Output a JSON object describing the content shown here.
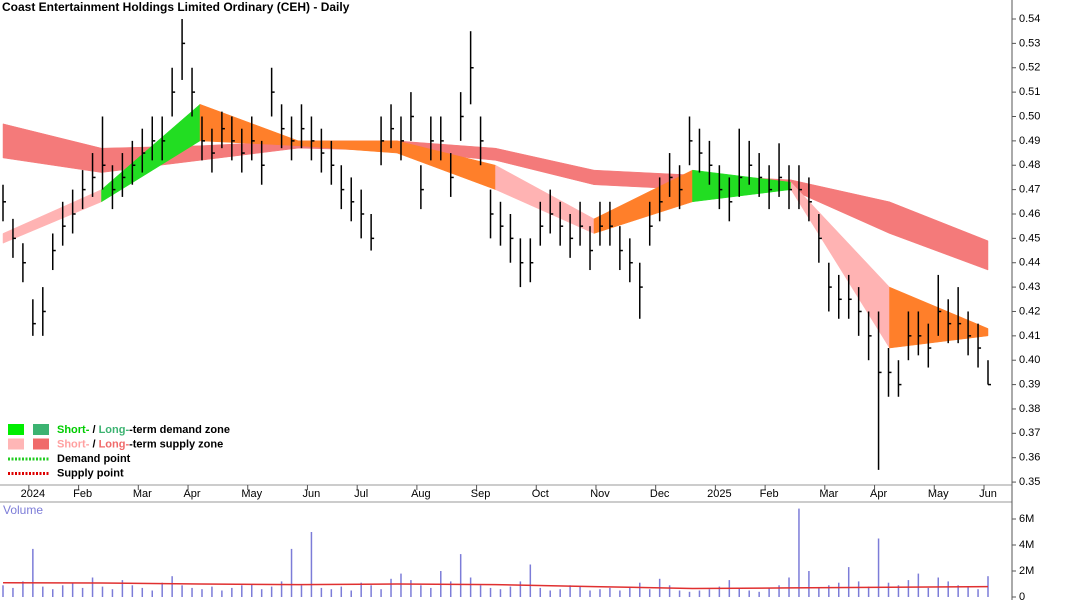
{
  "chart_data": [
    {
      "type": "ohlc",
      "title": "Coast Entertainment Holdings Limited Ordinary (CEH) - Daily",
      "categories": [
        null,
        null,
        null,
        "2024",
        null,
        null,
        null,
        null,
        "Feb",
        null,
        null,
        null,
        null,
        null,
        "Mar",
        null,
        null,
        null,
        null,
        "Apr",
        null,
        null,
        null,
        null,
        null,
        "May",
        null,
        null,
        null,
        null,
        null,
        "Jun",
        null,
        null,
        null,
        null,
        "Jul",
        null,
        null,
        null,
        null,
        null,
        "Aug",
        null,
        null,
        null,
        null,
        null,
        "Sep",
        null,
        null,
        null,
        null,
        null,
        "Oct",
        null,
        null,
        null,
        null,
        null,
        "Nov",
        null,
        null,
        null,
        null,
        null,
        "Dec",
        null,
        null,
        null,
        null,
        null,
        "2025",
        null,
        null,
        null,
        null,
        "Feb",
        null,
        null,
        null,
        null,
        null,
        "Mar",
        null,
        null,
        null,
        null,
        "Apr",
        null,
        null,
        null,
        null,
        null,
        "May",
        null,
        null,
        null,
        null,
        "Jun"
      ],
      "high": [
        0.472,
        0.458,
        0.448,
        0.425,
        0.43,
        0.452,
        0.465,
        0.47,
        0.478,
        0.485,
        0.5,
        0.48,
        0.485,
        0.49,
        0.495,
        0.5,
        0.5,
        0.52,
        0.54,
        0.52,
        0.5,
        0.495,
        0.502,
        0.5,
        0.495,
        0.5,
        0.49,
        0.52,
        0.505,
        0.5,
        0.505,
        0.5,
        0.495,
        0.49,
        0.48,
        0.475,
        0.47,
        0.46,
        0.5,
        0.505,
        0.5,
        0.51,
        0.48,
        0.5,
        0.5,
        0.485,
        0.51,
        0.535,
        0.5,
        0.47,
        0.465,
        0.46,
        0.45,
        0.45,
        0.465,
        0.47,
        0.465,
        0.46,
        0.465,
        0.455,
        0.465,
        0.465,
        0.455,
        0.45,
        0.44,
        0.465,
        0.475,
        0.485,
        0.48,
        0.5,
        0.495,
        0.49,
        0.48,
        0.475,
        0.495,
        0.49,
        0.485,
        0.48,
        0.489,
        0.48,
        0.48,
        0.475,
        0.46,
        0.44,
        0.435,
        0.435,
        0.43,
        0.42,
        0.42,
        0.405,
        0.4,
        0.42,
        0.42,
        0.415,
        0.435,
        0.425,
        0.43,
        0.42,
        0.415,
        0.4
      ],
      "low": [
        0.457,
        0.442,
        0.432,
        0.41,
        0.41,
        0.437,
        0.447,
        0.452,
        0.462,
        0.467,
        0.47,
        0.462,
        0.467,
        0.472,
        0.477,
        0.482,
        0.482,
        0.5,
        0.515,
        0.5,
        0.482,
        0.477,
        0.487,
        0.482,
        0.477,
        0.482,
        0.472,
        0.5,
        0.487,
        0.482,
        0.487,
        0.482,
        0.477,
        0.472,
        0.462,
        0.457,
        0.45,
        0.445,
        0.48,
        0.487,
        0.482,
        0.49,
        0.462,
        0.482,
        0.482,
        0.467,
        0.49,
        0.505,
        0.48,
        0.45,
        0.447,
        0.44,
        0.43,
        0.432,
        0.447,
        0.452,
        0.447,
        0.442,
        0.447,
        0.437,
        0.447,
        0.447,
        0.437,
        0.432,
        0.417,
        0.447,
        0.457,
        0.467,
        0.462,
        0.48,
        0.477,
        0.472,
        0.462,
        0.457,
        0.467,
        0.472,
        0.467,
        0.462,
        0.467,
        0.462,
        0.462,
        0.457,
        0.44,
        0.42,
        0.417,
        0.417,
        0.41,
        0.4,
        0.355,
        0.385,
        0.385,
        0.4,
        0.402,
        0.397,
        0.41,
        0.407,
        0.407,
        0.402,
        0.397,
        0.39
      ],
      "close": [
        0.465,
        0.45,
        0.44,
        0.415,
        0.42,
        0.445,
        0.455,
        0.46,
        0.47,
        0.475,
        0.48,
        0.47,
        0.475,
        0.48,
        0.485,
        0.49,
        0.49,
        0.51,
        0.53,
        0.51,
        0.49,
        0.485,
        0.495,
        0.49,
        0.485,
        0.49,
        0.48,
        0.51,
        0.495,
        0.49,
        0.495,
        0.49,
        0.485,
        0.48,
        0.47,
        0.465,
        0.46,
        0.45,
        0.49,
        0.495,
        0.49,
        0.5,
        0.47,
        0.49,
        0.49,
        0.475,
        0.5,
        0.52,
        0.49,
        0.46,
        0.455,
        0.45,
        0.44,
        0.44,
        0.455,
        0.46,
        0.455,
        0.45,
        0.455,
        0.445,
        0.455,
        0.455,
        0.445,
        0.44,
        0.43,
        0.455,
        0.465,
        0.475,
        0.47,
        0.49,
        0.485,
        0.48,
        0.47,
        0.465,
        0.475,
        0.48,
        0.475,
        0.47,
        0.475,
        0.47,
        0.47,
        0.465,
        0.45,
        0.43,
        0.425,
        0.425,
        0.42,
        0.41,
        0.395,
        0.395,
        0.39,
        0.41,
        0.41,
        0.405,
        0.42,
        0.415,
        0.415,
        0.41,
        0.405,
        0.39
      ],
      "bar_color": "#000000",
      "long_band": {
        "upper": [
          0.497,
          0.487,
          0.488,
          0.49,
          0.49,
          0.487,
          0.478,
          0.476,
          0.474,
          0.465,
          0.449
        ],
        "lower": [
          0.483,
          0.477,
          0.482,
          0.487,
          0.486,
          0.482,
          0.472,
          0.47,
          0.47,
          0.452,
          0.437
        ],
        "color": "#f47a7a"
      },
      "short_band": {
        "upper": [
          0.452,
          0.47,
          0.505,
          0.49,
          0.49,
          0.48,
          0.458,
          0.478,
          0.473,
          0.43,
          0.413
        ],
        "lower": [
          0.448,
          0.465,
          0.49,
          0.488,
          0.485,
          0.47,
          0.452,
          0.465,
          0.47,
          0.405,
          0.41
        ],
        "segment_colors": [
          "#ffb3b3",
          "#22dd22",
          "#ff7f2a",
          "#ff7f2a",
          "#ff7f2a",
          "#ffb3b3",
          "#ff7f2a",
          "#22dd22",
          "#ffb3b3",
          "#ff7f2a"
        ]
      },
      "ylim": [
        0.3488,
        0.5478
      ],
      "yticks": [
        0.35,
        0.36,
        0.37,
        0.38,
        0.39,
        {
          "value": 0.4,
          "label": "0.40"
        },
        0.41,
        0.42,
        0.43,
        0.44,
        0.45,
        0.46,
        0.47,
        0.48,
        0.49,
        {
          "value": 0.5,
          "label": "0.50"
        },
        0.51,
        0.52,
        0.53,
        0.54
      ],
      "legend": [
        {
          "swatches": [
            "#00ee00",
            "#3cb371"
          ],
          "parts": [
            {
              "text": "Short-",
              "color": "#00cc00"
            },
            {
              "text": " / ",
              "color": "#000000"
            },
            {
              "text": "Long-",
              "color": "#3cb371"
            },
            {
              "text": "-term demand zone",
              "color": "#000000"
            }
          ]
        },
        {
          "swatches": [
            "#ffb6b6",
            "#f06a6a"
          ],
          "parts": [
            {
              "text": "Short-",
              "color": "#ffa0a0"
            },
            {
              "text": " / ",
              "color": "#000000"
            },
            {
              "text": "Long-",
              "color": "#f06a6a"
            },
            {
              "text": "-term supply zone",
              "color": "#000000"
            }
          ]
        },
        {
          "line": "#22cc22",
          "parts": [
            {
              "text": "Demand point",
              "color": "#000000"
            }
          ]
        },
        {
          "line": "#dd0000",
          "parts": [
            {
              "text": "Supply point",
              "color": "#000000"
            }
          ]
        }
      ]
    },
    {
      "type": "bar",
      "title": "Volume",
      "values": [
        900000,
        700000,
        1200000,
        3700000,
        800000,
        600000,
        900000,
        1100000,
        700000,
        1500000,
        800000,
        600000,
        1300000,
        900000,
        700000,
        500000,
        1100000,
        1600000,
        900000,
        700000,
        600000,
        800000,
        500000,
        700000,
        900000,
        1000000,
        600000,
        800000,
        1200000,
        3700000,
        900000,
        5000000,
        700000,
        600000,
        800000,
        500000,
        1100000,
        900000,
        600000,
        1400000,
        1800000,
        1300000,
        900000,
        700000,
        2000000,
        1200000,
        3300000,
        1500000,
        900000,
        700000,
        600000,
        800000,
        1200000,
        2500000,
        700000,
        500000,
        600000,
        900000,
        800000,
        500000,
        600000,
        700000,
        500000,
        800000,
        1100000,
        600000,
        1400000,
        900000,
        500000,
        400000,
        500000,
        600000,
        800000,
        1300000,
        700000,
        500000,
        400000,
        700000,
        900000,
        1500000,
        6800000,
        2000000,
        700000,
        900000,
        1100000,
        2300000,
        1200000,
        800000,
        4500000,
        1100000,
        900000,
        1300000,
        1800000,
        700000,
        1500000,
        1200000,
        900000,
        800000,
        600000,
        1600000
      ],
      "color": "#7c7cd8",
      "average_line": {
        "values": [
          1100000,
          1080000,
          1000000,
          950000,
          1000000,
          950000,
          800000,
          650000,
          700000,
          750000,
          800000
        ],
        "color": "#e03030"
      },
      "ylim": [
        0,
        7230000
      ],
      "yticks": [
        0,
        {
          "value": 2000000,
          "label": "2M"
        },
        {
          "value": 4000000,
          "label": "4M"
        },
        {
          "value": 6000000,
          "label": "6M"
        }
      ]
    }
  ]
}
